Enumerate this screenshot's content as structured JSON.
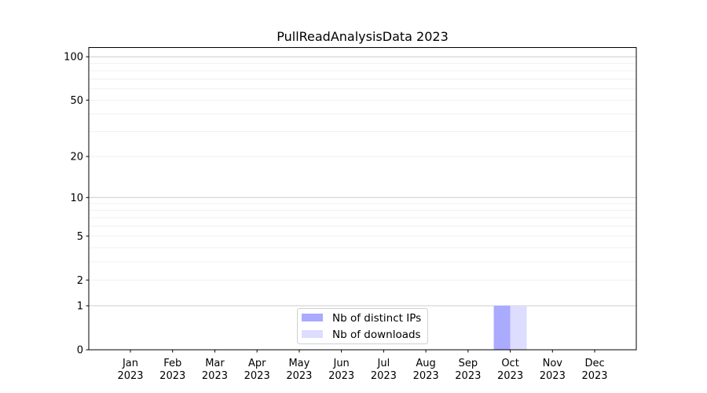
{
  "chart_data": {
    "type": "bar",
    "title": "PullReadAnalysisData 2023",
    "xlabel": "",
    "ylabel": "",
    "yscale": "log(1+y)",
    "ylim": [
      0,
      115
    ],
    "yticks": [
      0,
      1,
      2,
      5,
      10,
      20,
      50,
      100
    ],
    "ytick_labels": [
      "0",
      "1",
      "2",
      "5",
      "10",
      "20",
      "50",
      "100"
    ],
    "grid": true,
    "categories": [
      "Jan\n2023",
      "Feb\n2023",
      "Mar\n2023",
      "Apr\n2023",
      "May\n2023",
      "Jun\n2023",
      "Jul\n2023",
      "Aug\n2023",
      "Sep\n2023",
      "Oct\n2023",
      "Nov\n2023",
      "Dec\n2023"
    ],
    "series": [
      {
        "name": "Nb of distinct IPs",
        "color": "#aaaaff",
        "values": [
          0,
          0,
          0,
          0,
          0,
          0,
          0,
          0,
          0,
          1,
          0,
          0
        ]
      },
      {
        "name": "Nb of downloads",
        "color": "#ddddff",
        "values": [
          0,
          0,
          0,
          0,
          0,
          0,
          0,
          0,
          0,
          1,
          0,
          0
        ]
      }
    ],
    "legend_position": "lower-center"
  }
}
